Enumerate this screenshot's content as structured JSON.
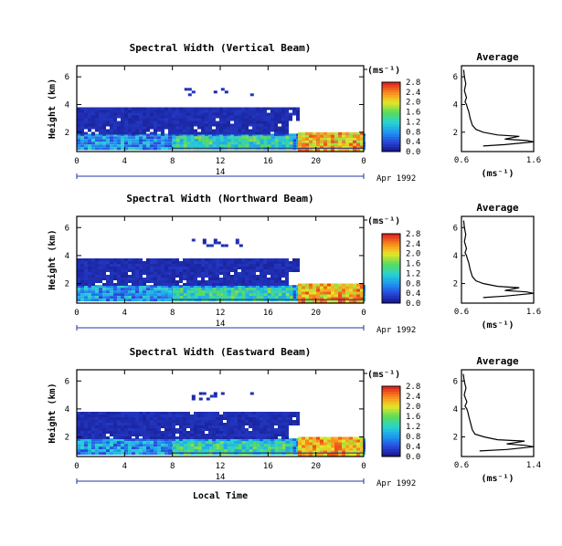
{
  "chart_data": [
    {
      "type": "heatmap",
      "title": "Spectral Width (Vertical Beam)",
      "ylabel": "Height (km)",
      "yticks": [
        "2",
        "4",
        "6"
      ],
      "xticks": [
        "0",
        "4",
        "8",
        "12",
        "16",
        "20",
        "0"
      ],
      "date_day": "14",
      "date_label": "Apr 1992",
      "xlim": [
        0,
        24
      ],
      "ylim": [
        0.6,
        6.8
      ],
      "colorbar": {
        "unit": "(ms⁻¹)",
        "ticks": [
          "0.0",
          "0.4",
          "0.8",
          "1.2",
          "1.6",
          "2.0",
          "2.4",
          "2.8"
        ],
        "range": [
          0.0,
          2.8
        ]
      },
      "regions": [
        {
          "label": "bottom layer",
          "x": [
            0,
            24
          ],
          "y": [
            0.8,
            1.9
          ],
          "value": 0.8
        },
        {
          "label": "high-width blob",
          "x": [
            8,
            18
          ],
          "y": [
            0.8,
            1.7
          ],
          "value": 1.3
        },
        {
          "label": "late high-width blob",
          "x": [
            18.5,
            24
          ],
          "y": [
            0.8,
            2.0
          ],
          "value": 2.2
        },
        {
          "label": "middle layer",
          "x": [
            0,
            17.5
          ],
          "y": [
            2.0,
            3.6
          ],
          "value": 0.2
        },
        {
          "label": "upper layer",
          "x": [
            0,
            18.5
          ],
          "y": [
            3.0,
            3.8
          ],
          "value": 0.2
        },
        {
          "label": "sparse high points",
          "x": [
            9,
            15
          ],
          "y": [
            4.8,
            5.2
          ],
          "value": 0.2
        }
      ]
    },
    {
      "type": "heatmap",
      "title": "Spectral Width (Northward Beam)",
      "ylabel": "Height (km)",
      "yticks": [
        "2",
        "4",
        "6"
      ],
      "xticks": [
        "0",
        "4",
        "8",
        "12",
        "16",
        "20",
        "0"
      ],
      "date_day": "14",
      "date_label": "Apr 1992",
      "xlim": [
        0,
        24
      ],
      "ylim": [
        0.6,
        6.8
      ],
      "colorbar": {
        "unit": "(ms⁻¹)",
        "ticks": [
          "0.0",
          "0.4",
          "0.8",
          "1.2",
          "1.6",
          "2.0",
          "2.4",
          "2.8"
        ],
        "range": [
          0.0,
          2.8
        ]
      },
      "regions": [
        {
          "label": "bottom layer",
          "x": [
            0,
            24
          ],
          "y": [
            0.8,
            1.9
          ],
          "value": 0.8
        },
        {
          "label": "high-width blob",
          "x": [
            8,
            18
          ],
          "y": [
            0.8,
            1.7
          ],
          "value": 1.3
        },
        {
          "label": "late high-width blob",
          "x": [
            18.5,
            24
          ],
          "y": [
            0.8,
            2.0
          ],
          "value": 2.2
        },
        {
          "label": "middle layer",
          "x": [
            0,
            17.5
          ],
          "y": [
            2.0,
            3.6
          ],
          "value": 0.2
        },
        {
          "label": "upper layer",
          "x": [
            0,
            18.5
          ],
          "y": [
            3.0,
            3.8
          ],
          "value": 0.2
        },
        {
          "label": "sparse high points",
          "x": [
            9,
            15
          ],
          "y": [
            4.8,
            5.2
          ],
          "value": 0.2
        }
      ]
    },
    {
      "type": "heatmap",
      "title": "Spectral Width (Eastward Beam)",
      "ylabel": "Height (km)",
      "yticks": [
        "2",
        "4",
        "6"
      ],
      "xticks": [
        "0",
        "4",
        "8",
        "12",
        "16",
        "20",
        "0"
      ],
      "date_day": "14",
      "date_label": "Apr 1992",
      "xlabel": "Local Time",
      "xlim": [
        0,
        24
      ],
      "ylim": [
        0.6,
        6.8
      ],
      "colorbar": {
        "unit": "(ms⁻¹)",
        "ticks": [
          "0.0",
          "0.4",
          "0.8",
          "1.2",
          "1.6",
          "2.0",
          "2.4",
          "2.8"
        ],
        "range": [
          0.0,
          2.8
        ]
      },
      "regions": [
        {
          "label": "bottom layer",
          "x": [
            0,
            24
          ],
          "y": [
            0.8,
            1.9
          ],
          "value": 0.8
        },
        {
          "label": "high-width blob",
          "x": [
            8,
            18
          ],
          "y": [
            0.8,
            1.7
          ],
          "value": 1.3
        },
        {
          "label": "late high-width blob",
          "x": [
            18.5,
            24
          ],
          "y": [
            0.8,
            2.0
          ],
          "value": 2.2
        },
        {
          "label": "middle layer",
          "x": [
            0,
            17.5
          ],
          "y": [
            2.0,
            3.6
          ],
          "value": 0.2
        },
        {
          "label": "upper layer",
          "x": [
            0,
            18.5
          ],
          "y": [
            3.0,
            3.8
          ],
          "value": 0.2
        },
        {
          "label": "sparse high points",
          "x": [
            9,
            15
          ],
          "y": [
            4.8,
            5.2
          ],
          "value": 0.2
        }
      ]
    },
    {
      "type": "line",
      "title": "Average",
      "xlabel": "(ms⁻¹)",
      "xticks": [
        "0.6",
        "1.6"
      ],
      "xlim": [
        0.6,
        1.6
      ],
      "ylim": [
        0.6,
        6.8
      ],
      "yticks": [
        "2",
        "4",
        "6"
      ],
      "profile": [
        [
          0.9,
          1.0
        ],
        [
          1.2,
          1.1
        ],
        [
          1.6,
          1.3
        ],
        [
          1.5,
          1.4
        ],
        [
          1.2,
          1.5
        ],
        [
          1.3,
          1.6
        ],
        [
          1.4,
          1.7
        ],
        [
          1.1,
          1.8
        ],
        [
          0.9,
          2.0
        ],
        [
          0.8,
          2.2
        ],
        [
          0.75,
          2.5
        ],
        [
          0.72,
          3.0
        ],
        [
          0.7,
          3.5
        ],
        [
          0.68,
          3.8
        ],
        [
          0.67,
          4.0
        ],
        [
          0.65,
          4.2
        ],
        [
          0.67,
          4.5
        ],
        [
          0.64,
          5.0
        ],
        [
          0.66,
          5.5
        ],
        [
          0.64,
          6.0
        ],
        [
          0.63,
          6.5
        ]
      ]
    },
    {
      "type": "line",
      "title": "Average",
      "xlabel": "(ms⁻¹)",
      "xticks": [
        "0.6",
        "1.6"
      ],
      "xlim": [
        0.6,
        1.6
      ],
      "ylim": [
        0.6,
        6.8
      ],
      "yticks": [
        "2",
        "4",
        "6"
      ],
      "profile": [
        [
          0.9,
          1.0
        ],
        [
          1.2,
          1.1
        ],
        [
          1.6,
          1.3
        ],
        [
          1.5,
          1.4
        ],
        [
          1.2,
          1.5
        ],
        [
          1.3,
          1.6
        ],
        [
          1.4,
          1.7
        ],
        [
          1.1,
          1.8
        ],
        [
          0.9,
          2.0
        ],
        [
          0.8,
          2.2
        ],
        [
          0.75,
          2.5
        ],
        [
          0.72,
          3.0
        ],
        [
          0.7,
          3.5
        ],
        [
          0.68,
          3.8
        ],
        [
          0.67,
          4.0
        ],
        [
          0.65,
          4.2
        ],
        [
          0.67,
          4.5
        ],
        [
          0.64,
          5.0
        ],
        [
          0.66,
          5.5
        ],
        [
          0.64,
          6.0
        ],
        [
          0.63,
          6.5
        ]
      ]
    },
    {
      "type": "line",
      "title": "Average",
      "xlabel": "(ms⁻¹)",
      "xticks": [
        "0.6",
        "1.4"
      ],
      "xlim": [
        0.6,
        1.4
      ],
      "ylim": [
        0.6,
        6.8
      ],
      "yticks": [
        "2",
        "4",
        "6"
      ],
      "profile": [
        [
          0.8,
          1.0
        ],
        [
          1.1,
          1.1
        ],
        [
          1.4,
          1.3
        ],
        [
          1.3,
          1.4
        ],
        [
          1.1,
          1.5
        ],
        [
          1.2,
          1.6
        ],
        [
          1.3,
          1.7
        ],
        [
          1.0,
          1.8
        ],
        [
          0.85,
          2.0
        ],
        [
          0.75,
          2.2
        ],
        [
          0.72,
          2.5
        ],
        [
          0.7,
          3.0
        ],
        [
          0.68,
          3.5
        ],
        [
          0.67,
          3.8
        ],
        [
          0.66,
          4.0
        ],
        [
          0.64,
          4.2
        ],
        [
          0.66,
          4.5
        ],
        [
          0.63,
          5.0
        ],
        [
          0.65,
          5.5
        ],
        [
          0.63,
          6.0
        ],
        [
          0.62,
          6.5
        ]
      ]
    }
  ]
}
